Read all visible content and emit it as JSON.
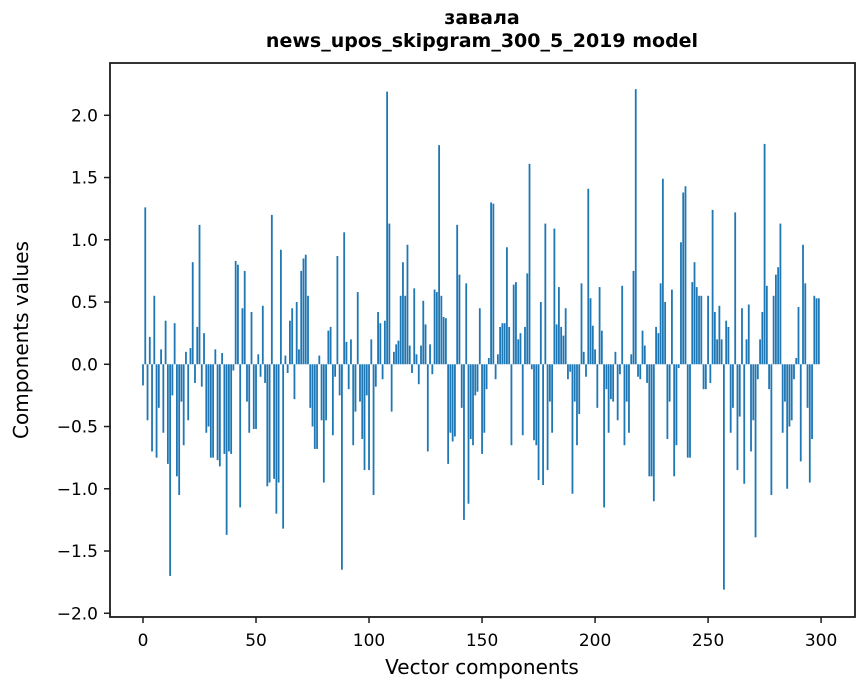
{
  "figure": {
    "title_line1": "завала",
    "title_line2": "news_upos_skipgram_300_5_2019 model",
    "xlabel": "Vector components",
    "ylabel": "Components values",
    "background": "#ffffff",
    "spine_color": "#1c1c1c",
    "text_color": "#000000"
  },
  "chart_data": {
    "type": "bar",
    "title": "завала\nnews_upos_skipgram_300_5_2019 model",
    "xlabel": "Vector components",
    "ylabel": "Components values",
    "bar_color": "#1f77b4",
    "n_components": 300,
    "grid": false,
    "legend_position": "none",
    "xlim": [
      -14.6,
      315.0
    ],
    "ylim": [
      -2.03,
      2.42
    ],
    "x_ticks": [
      0,
      50,
      100,
      150,
      200,
      250,
      300
    ],
    "y_ticks": [
      2.0,
      1.5,
      1.0,
      0.5,
      0.0,
      -0.5,
      -1.0,
      -1.5,
      -2.0
    ],
    "values": [
      -0.17,
      1.26,
      -0.45,
      0.22,
      -0.7,
      0.55,
      -0.75,
      -0.35,
      0.12,
      -0.55,
      0.35,
      -0.8,
      -1.7,
      -0.25,
      0.33,
      -0.9,
      -1.05,
      -0.3,
      -0.65,
      0.1,
      -0.45,
      0.13,
      0.82,
      -0.15,
      0.3,
      1.12,
      -0.18,
      0.25,
      -0.55,
      -0.5,
      -0.75,
      -0.75,
      0.12,
      -0.77,
      -0.82,
      0.09,
      -0.72,
      -1.37,
      -0.7,
      -0.72,
      -0.05,
      0.83,
      0.8,
      -1.15,
      0.45,
      0.75,
      -0.3,
      -0.55,
      0.42,
      -0.52,
      -0.52,
      0.08,
      -0.1,
      0.47,
      -0.15,
      -0.98,
      -0.95,
      1.2,
      -0.92,
      -1.2,
      -0.95,
      0.92,
      -1.32,
      0.07,
      -0.07,
      0.35,
      0.45,
      -0.28,
      0.5,
      0.12,
      0.75,
      0.85,
      0.88,
      0.55,
      -0.35,
      -0.5,
      -0.68,
      -0.68,
      0.07,
      -0.45,
      -0.95,
      -0.45,
      0.27,
      0.3,
      -0.57,
      -0.1,
      0.87,
      -0.25,
      -1.65,
      1.06,
      0.18,
      -0.2,
      0.2,
      -0.65,
      -0.38,
      0.58,
      -0.3,
      -0.6,
      -0.85,
      -0.25,
      -0.85,
      0.2,
      -1.05,
      -0.18,
      0.42,
      0.33,
      -0.12,
      0.35,
      2.19,
      1.13,
      -0.38,
      0.1,
      0.16,
      0.19,
      0.55,
      0.82,
      0.55,
      0.96,
      0.15,
      -0.07,
      0.61,
      0.08,
      -0.16,
      0.15,
      0.51,
      0.32,
      -0.7,
      0.16,
      -0.08,
      0.6,
      0.58,
      1.76,
      0.55,
      0.38,
      0.37,
      -0.8,
      -0.55,
      -0.62,
      -0.58,
      1.12,
      0.72,
      -0.35,
      -1.25,
      0.65,
      -1.12,
      -0.6,
      -0.65,
      -0.25,
      -0.22,
      0.45,
      -0.72,
      -0.55,
      -0.2,
      0.05,
      1.3,
      1.29,
      -0.12,
      0.08,
      0.3,
      0.33,
      0.33,
      0.94,
      0.3,
      -0.65,
      0.64,
      0.66,
      0.2,
      0.25,
      -0.57,
      0.3,
      0.73,
      1.61,
      -0.04,
      -0.61,
      -0.65,
      -0.93,
      0.5,
      -0.97,
      1.13,
      -0.85,
      -0.3,
      -0.55,
      1.09,
      0.32,
      0.62,
      0.3,
      0.23,
      0.45,
      -0.12,
      -0.06,
      -1.04,
      -0.3,
      -0.65,
      -0.4,
      0.65,
      0.1,
      -0.1,
      1.41,
      0.53,
      0.31,
      0.12,
      -0.35,
      0.62,
      0.27,
      -1.15,
      -0.2,
      -0.55,
      -0.28,
      -0.3,
      0.1,
      -0.45,
      -0.08,
      0.63,
      -0.65,
      -0.3,
      -0.55,
      0.08,
      0.75,
      2.21,
      -0.1,
      -0.12,
      0.27,
      0.15,
      -0.15,
      -0.9,
      -0.9,
      -1.1,
      0.3,
      0.25,
      0.65,
      1.49,
      0.5,
      -0.6,
      -0.3,
      0.6,
      -0.9,
      -0.65,
      -0.03,
      0.98,
      1.38,
      1.43,
      -0.75,
      -0.75,
      0.66,
      0.82,
      0.62,
      0.55,
      0.55,
      -0.2,
      -0.2,
      0.55,
      -0.15,
      1.24,
      0.42,
      0.2,
      0.47,
      0.2,
      -1.81,
      0.35,
      0.3,
      -0.55,
      -0.35,
      1.22,
      -0.85,
      -0.42,
      0.45,
      -0.96,
      0.2,
      0.48,
      -0.7,
      -0.45,
      -1.39,
      -0.12,
      0.2,
      0.42,
      1.77,
      0.63,
      -0.2,
      -1.05,
      0.55,
      0.72,
      0.78,
      1.13,
      -0.55,
      -0.3,
      -1.0,
      -0.5,
      -0.45,
      -0.12,
      0.05,
      0.46,
      -0.78,
      0.96,
      0.65,
      -0.35,
      -0.95,
      -0.6,
      0.55,
      0.53,
      0.53
    ]
  }
}
